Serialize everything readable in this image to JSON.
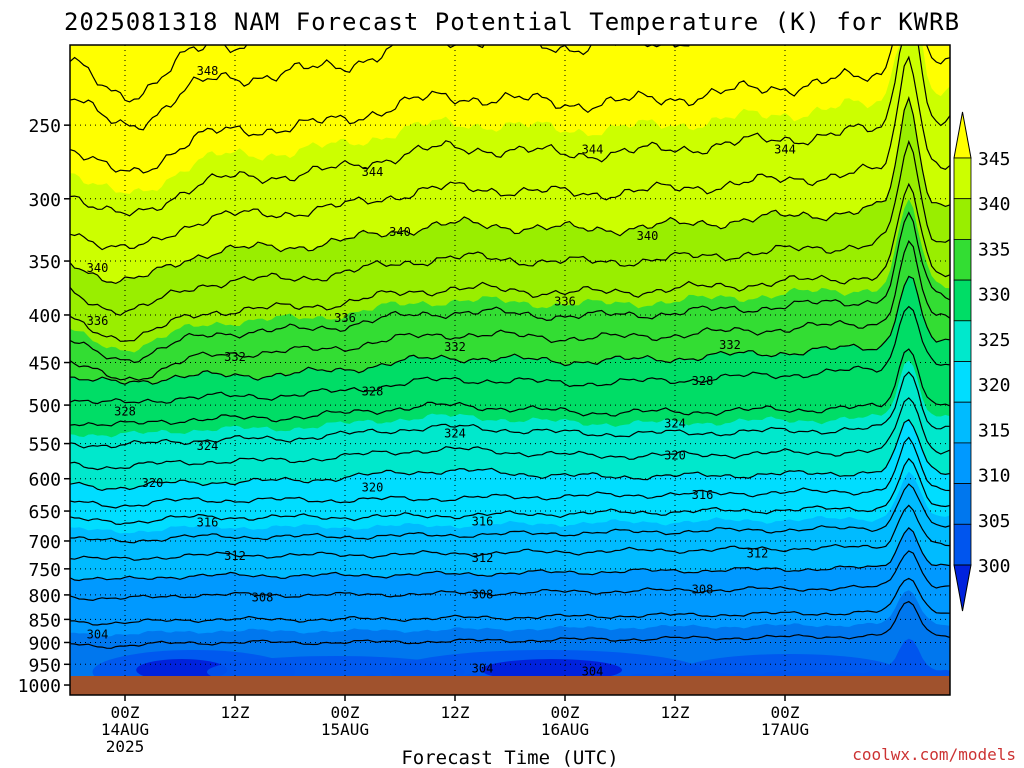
{
  "chart_data": {
    "type": "heatmap",
    "title": "2025081318 NAM Forecast Potential Temperature (K) for KWRB",
    "xlabel": "Forecast Time (UTC)",
    "ylabel": "",
    "y_axis": {
      "ticks": [
        "250",
        "300",
        "350",
        "400",
        "450",
        "500",
        "550",
        "600",
        "650",
        "700",
        "750",
        "800",
        "850",
        "900",
        "950",
        "1000"
      ],
      "scale": "log-pressure, decreasing upward",
      "range": [
        1025,
        205
      ]
    },
    "x_axis": {
      "ticks": [
        {
          "hour": "00Z",
          "date": "14AUG",
          "year": "2025"
        },
        {
          "hour": "12Z",
          "date": "",
          "year": ""
        },
        {
          "hour": "00Z",
          "date": "15AUG",
          "year": ""
        },
        {
          "hour": "12Z",
          "date": "",
          "year": ""
        },
        {
          "hour": "00Z",
          "date": "16AUG",
          "year": ""
        },
        {
          "hour": "12Z",
          "date": "",
          "year": ""
        },
        {
          "hour": "00Z",
          "date": "17AUG",
          "year": ""
        }
      ],
      "range": [
        "2025-08-13 18Z",
        "2025-08-17 18Z"
      ]
    },
    "colorbar": {
      "labels": [
        "345",
        "340",
        "335",
        "330",
        "325",
        "320",
        "315",
        "310",
        "305",
        "300"
      ],
      "colors": [
        "#ffff00",
        "#ccff00",
        "#99ee00",
        "#33dd33",
        "#00dd66",
        "#00e8cc",
        "#00ddff",
        "#00bbff",
        "#0099ff",
        "#0077ee",
        "#0055ee",
        "#0022dd"
      ]
    },
    "contour_labels": [
      {
        "text": "348",
        "time": "2025-08-14 09Z",
        "level": 218
      },
      {
        "text": "344",
        "time": "2025-08-15 03Z",
        "level": 280
      },
      {
        "text": "344",
        "time": "2025-08-16 03Z",
        "level": 265
      },
      {
        "text": "344",
        "time": "2025-08-17 00Z",
        "level": 265
      },
      {
        "text": "340",
        "time": "2025-08-13 21Z",
        "level": 355
      },
      {
        "text": "340",
        "time": "2025-08-15 06Z",
        "level": 325
      },
      {
        "text": "340",
        "time": "2025-08-16 09Z",
        "level": 328
      },
      {
        "text": "336",
        "time": "2025-08-13 21Z",
        "level": 405
      },
      {
        "text": "336",
        "time": "2025-08-15 00Z",
        "level": 402
      },
      {
        "text": "336",
        "time": "2025-08-16 00Z",
        "level": 386
      },
      {
        "text": "332",
        "time": "2025-08-14 12Z",
        "level": 443
      },
      {
        "text": "332",
        "time": "2025-08-15 12Z",
        "level": 432
      },
      {
        "text": "332",
        "time": "2025-08-16 18Z",
        "level": 430
      },
      {
        "text": "328",
        "time": "2025-08-14 00Z",
        "level": 507
      },
      {
        "text": "328",
        "time": "2025-08-15 03Z",
        "level": 482
      },
      {
        "text": "328",
        "time": "2025-08-16 15Z",
        "level": 470
      },
      {
        "text": "324",
        "time": "2025-08-14 09Z",
        "level": 552
      },
      {
        "text": "324",
        "time": "2025-08-15 12Z",
        "level": 535
      },
      {
        "text": "324",
        "time": "2025-08-16 12Z",
        "level": 522
      },
      {
        "text": "320",
        "time": "2025-08-14 03Z",
        "level": 605
      },
      {
        "text": "320",
        "time": "2025-08-15 03Z",
        "level": 612
      },
      {
        "text": "320",
        "time": "2025-08-16 12Z",
        "level": 565
      },
      {
        "text": "316",
        "time": "2025-08-14 09Z",
        "level": 667
      },
      {
        "text": "316",
        "time": "2025-08-15 15Z",
        "level": 665
      },
      {
        "text": "316",
        "time": "2025-08-16 15Z",
        "level": 623
      },
      {
        "text": "312",
        "time": "2025-08-14 12Z",
        "level": 725
      },
      {
        "text": "312",
        "time": "2025-08-15 15Z",
        "level": 728
      },
      {
        "text": "312",
        "time": "2025-08-16 21Z",
        "level": 720
      },
      {
        "text": "308",
        "time": "2025-08-14 15Z",
        "level": 803
      },
      {
        "text": "308",
        "time": "2025-08-15 15Z",
        "level": 797
      },
      {
        "text": "308",
        "time": "2025-08-16 15Z",
        "level": 787
      },
      {
        "text": "304",
        "time": "2025-08-13 21Z",
        "level": 880
      },
      {
        "text": "304",
        "time": "2025-08-15 15Z",
        "level": 958
      },
      {
        "text": "304",
        "time": "2025-08-16 03Z",
        "level": 965
      }
    ],
    "ground_color": "#a0522d"
  },
  "watermark": "coolwx.com/models",
  "colors": {
    "watermark": "#cc3333",
    "gridline": "#000000"
  }
}
